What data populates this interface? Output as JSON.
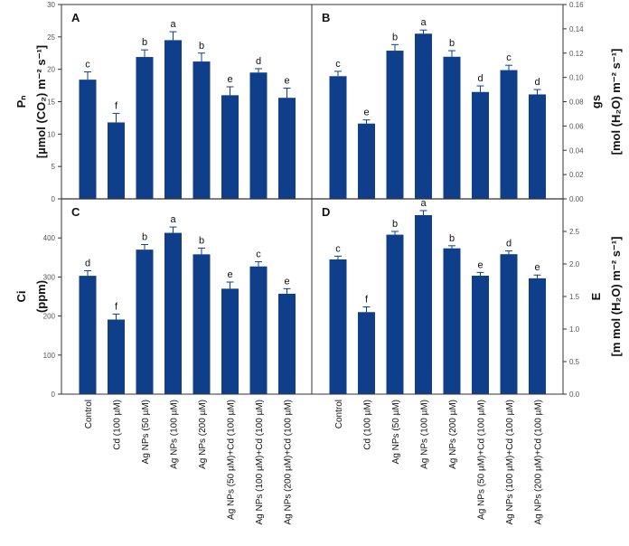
{
  "chart_data": [
    {
      "type": "bar",
      "panel": "A",
      "ylabel": [
        "Pₙ",
        "[µmol (CO₂) m⁻² s⁻¹]"
      ],
      "ylim": [
        0,
        30
      ],
      "yticks": [
        0,
        5,
        10,
        15,
        20,
        25,
        30
      ],
      "axis_side": "left",
      "values": [
        18.4,
        11.8,
        21.9,
        24.5,
        21.2,
        16.0,
        19.5,
        15.6
      ],
      "errors": [
        1.2,
        1.4,
        1.1,
        1.3,
        1.3,
        1.3,
        0.6,
        1.5
      ],
      "letters": [
        "c",
        "f",
        "b",
        "a",
        "b",
        "e",
        "d",
        "e"
      ]
    },
    {
      "type": "bar",
      "panel": "B",
      "ylabel": [
        "gs",
        "[mol (H₂O) m⁻² s⁻¹]"
      ],
      "ylim": [
        0,
        0.16
      ],
      "yticks": [
        "0.00",
        "0.02",
        "0.04",
        "0.06",
        "0.08",
        "0.10",
        "0.12",
        "0.14",
        "0.16"
      ],
      "axis_side": "right",
      "values": [
        0.101,
        0.062,
        0.122,
        0.136,
        0.117,
        0.088,
        0.106,
        0.086
      ],
      "errors": [
        0.004,
        0.003,
        0.005,
        0.003,
        0.005,
        0.005,
        0.004,
        0.004
      ],
      "letters": [
        "c",
        "e",
        "b",
        "a",
        "b",
        "d",
        "c",
        "d"
      ]
    },
    {
      "type": "bar",
      "panel": "C",
      "ylabel": [
        "Ci",
        "(ppm)"
      ],
      "ylim": [
        0,
        500
      ],
      "yticks": [
        0,
        100,
        200,
        300,
        400
      ],
      "axis_side": "left",
      "values": [
        303,
        191,
        370,
        413,
        358,
        270,
        327,
        257
      ],
      "errors": [
        13,
        14,
        13,
        15,
        16,
        17,
        12,
        13
      ],
      "letters": [
        "d",
        "f",
        "b",
        "a",
        "b",
        "e",
        "c",
        "e"
      ]
    },
    {
      "type": "bar",
      "panel": "D",
      "ylabel": [
        "E",
        "[m mol (H₂O) m⁻² s⁻¹]"
      ],
      "ylim": [
        0,
        3
      ],
      "yticks": [
        "0.0",
        "0.5",
        "1.0",
        "1.5",
        "2.0",
        "2.5"
      ],
      "axis_side": "right",
      "values": [
        2.07,
        1.26,
        2.45,
        2.75,
        2.24,
        1.82,
        2.15,
        1.78
      ],
      "errors": [
        0.05,
        0.08,
        0.05,
        0.07,
        0.04,
        0.05,
        0.05,
        0.05
      ],
      "letters": [
        "c",
        "f",
        "b",
        "a",
        "b",
        "e",
        "d",
        "e"
      ]
    }
  ],
  "categories": [
    "Control",
    "Cd (100 µM)",
    "Ag NPs (50 µM)",
    "Ag NPs (100 µM)",
    "Ag NPs (200 µM)",
    "Ag NPs (50 µM)+Cd (100 µM)",
    "Ag NPs (100 µM)+Cd (100 µM)",
    "Ag NPs (200 µM)+Cd (100 µM)"
  ],
  "colors": {
    "bar": "#0f3f8a",
    "axis": "#333333"
  }
}
